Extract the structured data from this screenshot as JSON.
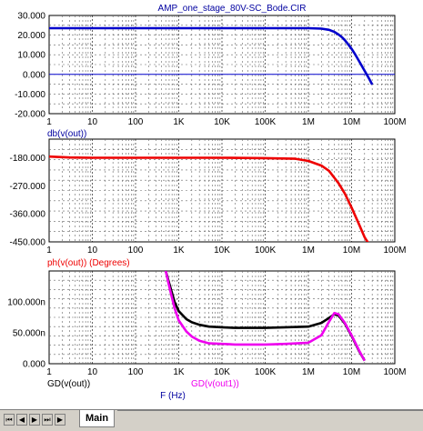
{
  "title": "AMP_one_stage_80V-SC_Bode.CIR",
  "x_ticks": [
    "1",
    "10",
    "100",
    "1K",
    "10K",
    "100K",
    "1M",
    "10M",
    "100M"
  ],
  "x_axis_label": "F (Hz)",
  "tabs": {
    "main_label": "Main"
  },
  "nav_buttons": [
    "first-icon",
    "prev-icon",
    "next-icon",
    "last-icon"
  ],
  "chart_data": [
    {
      "type": "line",
      "xscale": "log",
      "xlim": [
        1,
        100000000
      ],
      "ylim": [
        -20,
        30
      ],
      "y_ticks": [
        "30.000",
        "20.000",
        "10.000",
        "0.000",
        "-10.000",
        "-20.000"
      ],
      "y_tick_values": [
        30,
        20,
        10,
        0,
        -10,
        -20
      ],
      "grid": true,
      "series": [
        {
          "name": "db(v(out))",
          "color": "#0000cc",
          "x": [
            1,
            1000,
            100000,
            1000000,
            2000000,
            3000000,
            4000000,
            5000000,
            6000000,
            7000000,
            8000000,
            10000000,
            12000000,
            15000000,
            20000000,
            25000000,
            30000000
          ],
          "y": [
            23.5,
            23.5,
            23.5,
            23.5,
            23.3,
            22.7,
            21.6,
            20.3,
            18.9,
            17.4,
            15.8,
            13.0,
            10.3,
            6.6,
            1.8,
            -1.9,
            -5.2
          ]
        },
        {
          "name": "",
          "color": "#0000cc",
          "x": [
            1,
            100000000
          ],
          "y": [
            0,
            0
          ]
        }
      ]
    },
    {
      "type": "line",
      "xscale": "log",
      "xlim": [
        1,
        100000000
      ],
      "ylim": [
        -450,
        -120
      ],
      "y_ticks": [
        "-180.000",
        "-270.000",
        "-360.000",
        "-450.000"
      ],
      "y_tick_values": [
        -180,
        -270,
        -360,
        -450
      ],
      "grid": true,
      "series": [
        {
          "name": "ph(v(out)) (Degrees)",
          "color": "#ee0000",
          "x": [
            1,
            3,
            10,
            100,
            10000,
            100000,
            500000,
            1000000,
            2000000,
            3000000,
            5000000,
            7000000,
            10000000,
            15000000,
            20000000,
            25000000
          ],
          "y": [
            -176,
            -179,
            -180,
            -180,
            -180,
            -181,
            -183,
            -190,
            -205,
            -222,
            -262,
            -295,
            -340,
            -395,
            -435,
            -456
          ]
        }
      ]
    },
    {
      "type": "line",
      "xscale": "log",
      "xlim": [
        1,
        100000000
      ],
      "ylim": [
        0,
        150
      ],
      "y_ticks": [
        "100.000n",
        "50.000n",
        "0.000"
      ],
      "y_tick_values": [
        100,
        50,
        0
      ],
      "grid": true,
      "series": [
        {
          "name": "GD(v(out))",
          "color": "#000000",
          "x": [
            500,
            600,
            800,
            1000,
            1500,
            2000,
            3000,
            5000,
            10000,
            20000,
            50000,
            100000,
            300000,
            1000000,
            2000000,
            3000000,
            4000000,
            5000000,
            7000000,
            10000000,
            15000000,
            20000000
          ],
          "y": [
            150,
            130,
            100,
            85,
            72,
            67,
            63,
            60,
            59,
            58,
            58,
            58,
            59,
            60,
            66,
            74,
            80,
            78,
            65,
            45,
            20,
            5
          ]
        },
        {
          "name": "GD(v(out1))",
          "color": "#ee00ee",
          "x": [
            500,
            600,
            800,
            1000,
            1500,
            2000,
            3000,
            5000,
            10000,
            20000,
            50000,
            100000,
            300000,
            1000000,
            2000000,
            3000000,
            4000000,
            5000000,
            7000000,
            10000000,
            15000000,
            20000000
          ],
          "y": [
            150,
            125,
            90,
            70,
            52,
            44,
            37,
            33,
            32,
            31,
            31,
            31,
            32,
            34,
            46,
            68,
            82,
            80,
            66,
            46,
            21,
            5
          ]
        }
      ]
    }
  ]
}
